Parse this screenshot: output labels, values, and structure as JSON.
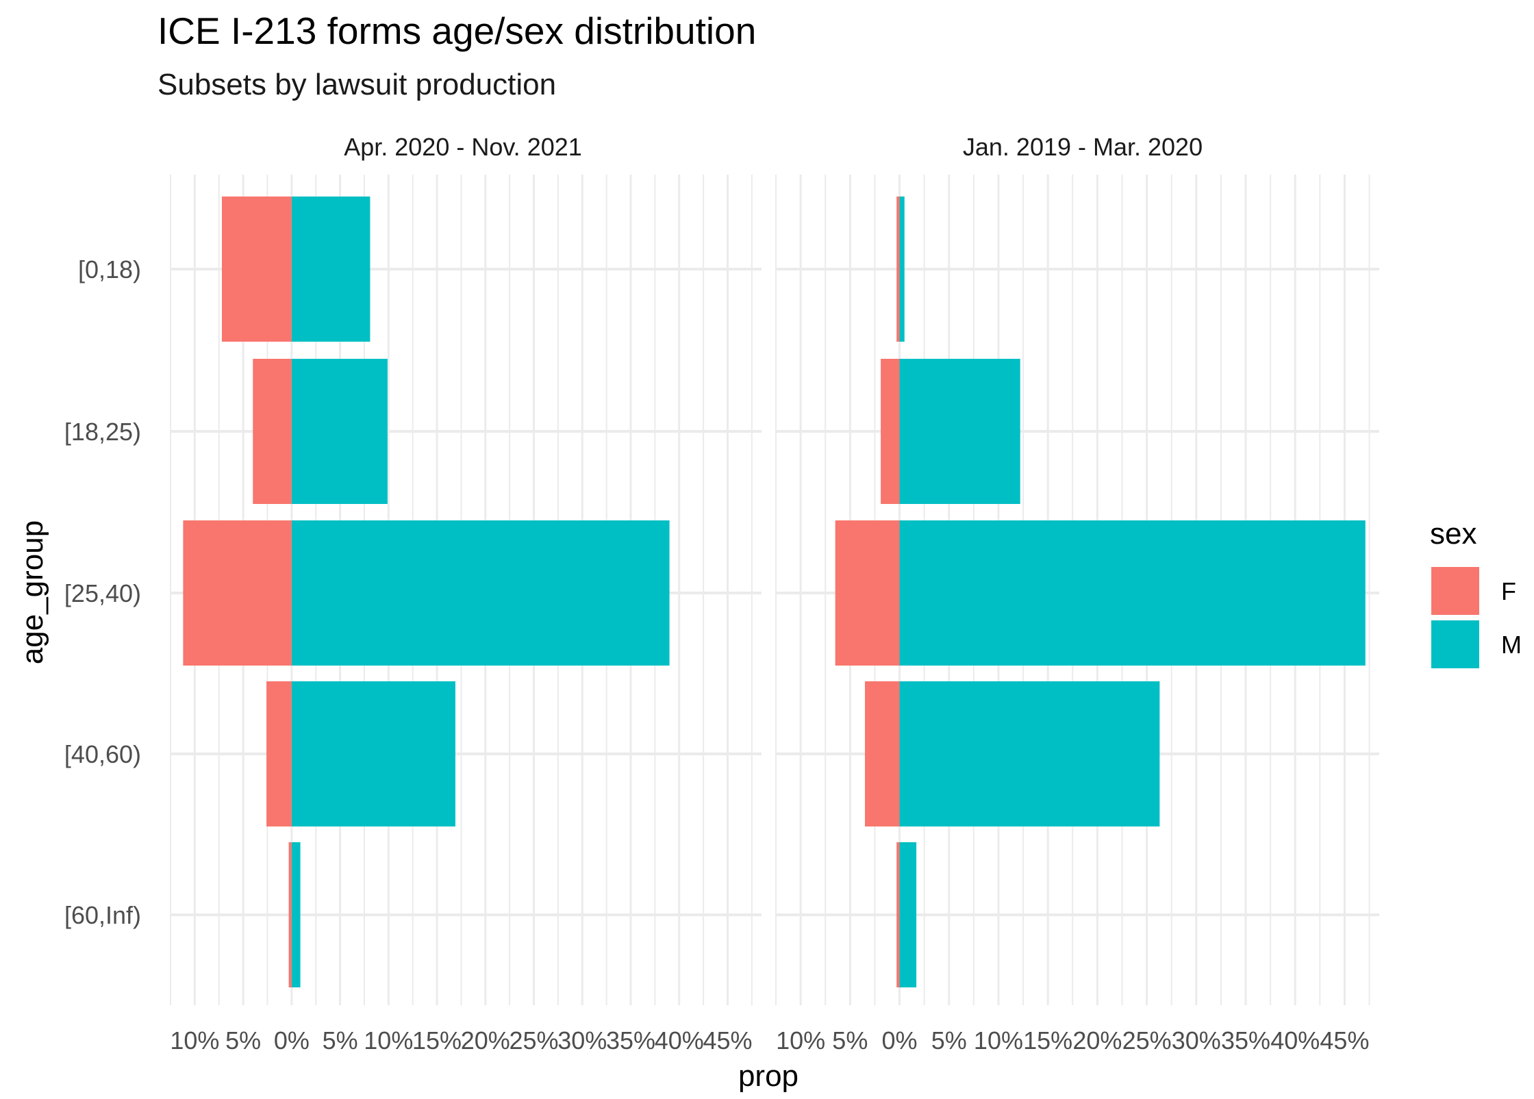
{
  "chart_data": {
    "type": "bar",
    "orientation": "horizontal",
    "layout": "diverging-facets",
    "title": "ICE I-213 forms age/sex distribution",
    "subtitle": "Subsets by lawsuit production",
    "xlabel": "prop",
    "ylabel": "age_group",
    "categories": [
      "[0,18)",
      "[18,25)",
      "[25,40)",
      "[40,60)",
      "[60,Inf)"
    ],
    "x_ticks": [
      -10,
      -5,
      0,
      5,
      10,
      15,
      20,
      25,
      30,
      35,
      40,
      45
    ],
    "x_tick_labels": [
      "10%",
      "5%",
      "0%",
      "5%",
      "10%",
      "15%",
      "20%",
      "25%",
      "30%",
      "35%",
      "40%",
      "45%"
    ],
    "xlim": [
      -12.5,
      48.5
    ],
    "grid": true,
    "legend": {
      "title": "sex",
      "position": "right",
      "entries": [
        {
          "label": "F",
          "color": "#F8766D"
        },
        {
          "label": "M",
          "color": "#00BFC4"
        }
      ]
    },
    "facets": [
      {
        "label": "Apr. 2020 - Nov. 2021",
        "series": [
          {
            "name": "F",
            "values": [
              -7.2,
              -4.0,
              -11.2,
              -2.6,
              -0.3
            ]
          },
          {
            "name": "M",
            "values": [
              8.1,
              9.9,
              39.0,
              16.9,
              0.9
            ]
          }
        ]
      },
      {
        "label": "Jan. 2019 - Mar. 2020",
        "series": [
          {
            "name": "F",
            "values": [
              -0.3,
              -1.9,
              -6.5,
              -3.5,
              -0.3
            ]
          },
          {
            "name": "M",
            "values": [
              0.5,
              12.2,
              47.1,
              26.3,
              1.7
            ]
          }
        ]
      }
    ]
  }
}
